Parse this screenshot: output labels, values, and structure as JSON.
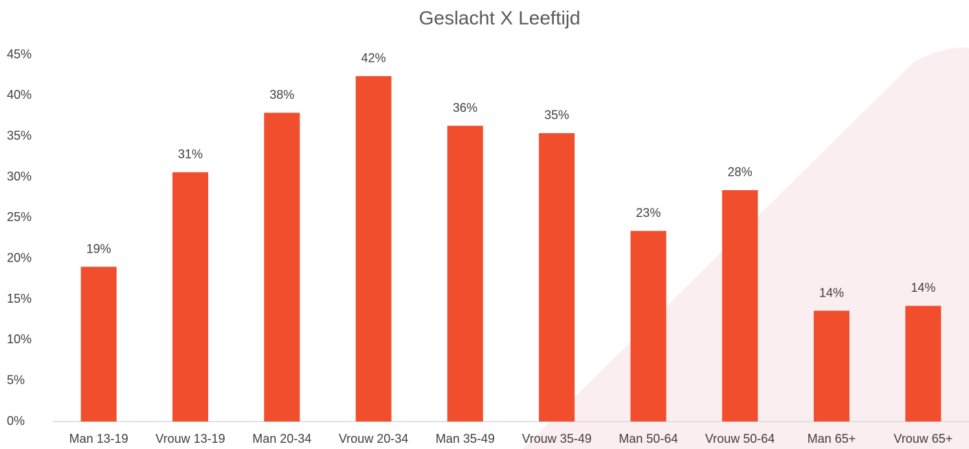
{
  "chart_data": {
    "type": "bar",
    "title": "Geslacht X Leeftijd",
    "categories": [
      "Man 13-19",
      "Vrouw 13-19",
      "Man 20-34",
      "Vrouw 20-34",
      "Man 35-49",
      "Vrouw 35-49",
      "Man 50-64",
      "Vrouw 50-64",
      "Man 65+",
      "Vrouw 65+"
    ],
    "values": [
      19.0,
      30.6,
      37.9,
      42.4,
      36.3,
      35.4,
      23.4,
      28.4,
      13.6,
      14.2
    ],
    "value_labels": [
      "19%",
      "31%",
      "38%",
      "42%",
      "36%",
      "35%",
      "23%",
      "28%",
      "14%",
      "14%"
    ],
    "color": "#f04e2c",
    "ylim": [
      0,
      45
    ],
    "yticks": [
      {
        "value": 0,
        "label": "0%"
      },
      {
        "value": 5,
        "label": "5%"
      },
      {
        "value": 10,
        "label": "10%"
      },
      {
        "value": 15,
        "label": "15%"
      },
      {
        "value": 20,
        "label": "20%"
      },
      {
        "value": 25,
        "label": "25%"
      },
      {
        "value": 30,
        "label": "30%"
      },
      {
        "value": 35,
        "label": "35%"
      },
      {
        "value": 40,
        "label": "40%"
      },
      {
        "value": 45,
        "label": "45%"
      }
    ],
    "grid": false
  }
}
